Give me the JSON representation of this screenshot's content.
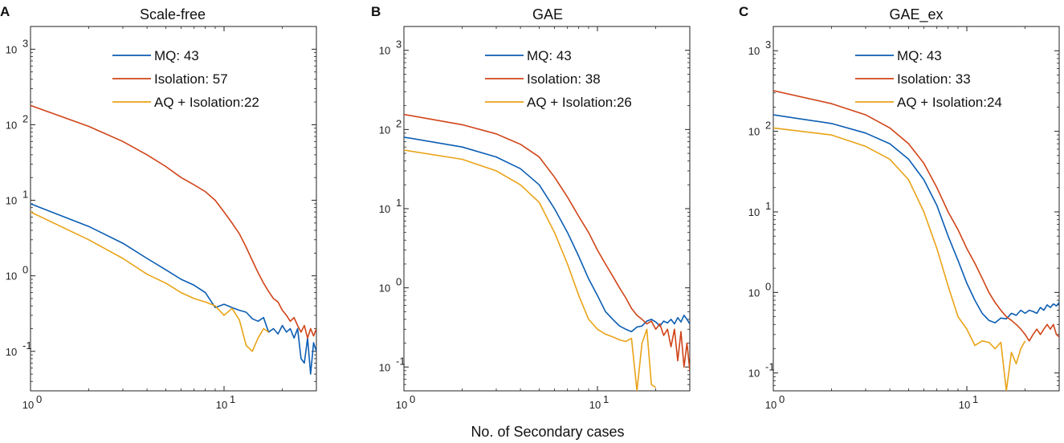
{
  "figure": {
    "xlabel": "No. of Secondary cases"
  },
  "colors": {
    "mq": "#0b5db3",
    "isolation": "#d04418",
    "aq_isolation": "#e9a317",
    "axis": "#222222"
  },
  "chart_data": [
    {
      "panel_label": "A",
      "type": "line",
      "title": "Scale-free",
      "xscale": "log",
      "yscale": "log",
      "xlim": [
        1,
        30
      ],
      "ylim": [
        0.03,
        2000
      ],
      "x_ticks": [
        {
          "label": "10",
          "exp": "0",
          "value": 1
        },
        {
          "label": "10",
          "exp": "1",
          "value": 10
        }
      ],
      "y_ticks": [
        {
          "label": "10",
          "exp": "-1",
          "value": 0.1
        },
        {
          "label": "10",
          "exp": "0",
          "value": 1
        },
        {
          "label": "10",
          "exp": "1",
          "value": 10
        },
        {
          "label": "10",
          "exp": "2",
          "value": 100
        },
        {
          "label": "10",
          "exp": "3",
          "value": 1000
        }
      ],
      "legend_position": "top-right",
      "series": [
        {
          "name": "MQ: 43",
          "color_key": "mq",
          "x": [
            1,
            2,
            3,
            4,
            5,
            6,
            7,
            8,
            9,
            10,
            11,
            12,
            13,
            14,
            15,
            16,
            17,
            18,
            19,
            20,
            21,
            22,
            23,
            24,
            25,
            26,
            27,
            28,
            29,
            30
          ],
          "y": [
            9,
            4.5,
            2.7,
            1.7,
            1.2,
            0.9,
            0.75,
            0.6,
            0.38,
            0.42,
            0.38,
            0.35,
            0.33,
            0.27,
            0.25,
            0.28,
            0.18,
            0.2,
            0.17,
            0.22,
            0.18,
            0.2,
            0.15,
            0.2,
            0.08,
            0.07,
            0.15,
            0.05,
            0.13,
            0.1
          ]
        },
        {
          "name": "Isolation: 57",
          "color_key": "isolation",
          "x": [
            1,
            2,
            3,
            4,
            5,
            6,
            7,
            8,
            9,
            10,
            11,
            12,
            13,
            14,
            15,
            16,
            17,
            18,
            19,
            20,
            21,
            22,
            23,
            24,
            25,
            26,
            27,
            28,
            29,
            30
          ],
          "y": [
            180,
            95,
            60,
            40,
            28,
            20,
            16,
            13,
            10,
            7,
            5,
            3.6,
            2.4,
            1.6,
            1.1,
            0.8,
            0.62,
            0.5,
            0.45,
            0.35,
            0.3,
            0.25,
            0.28,
            0.22,
            0.18,
            0.22,
            0.15,
            0.2,
            0.16,
            0.2
          ]
        },
        {
          "name": "AQ + Isolation:22",
          "color_key": "aq_isolation",
          "x": [
            1,
            2,
            3,
            4,
            5,
            6,
            7,
            8,
            9,
            10,
            11,
            12,
            13,
            14,
            15,
            16,
            17
          ],
          "y": [
            7,
            3,
            1.7,
            1.05,
            0.8,
            0.6,
            0.5,
            0.45,
            0.4,
            0.3,
            0.37,
            0.26,
            0.12,
            0.1,
            0.15,
            0.2,
            0.18
          ]
        }
      ]
    },
    {
      "panel_label": "B",
      "type": "line",
      "title": "GAE",
      "xscale": "log",
      "yscale": "log",
      "xlim": [
        1,
        30
      ],
      "ylim": [
        0.05,
        2000
      ],
      "x_ticks": [
        {
          "label": "10",
          "exp": "0",
          "value": 1
        },
        {
          "label": "10",
          "exp": "1",
          "value": 10
        }
      ],
      "y_ticks": [
        {
          "label": "10",
          "exp": "-1",
          "value": 0.1
        },
        {
          "label": "10",
          "exp": "0",
          "value": 1
        },
        {
          "label": "10",
          "exp": "1",
          "value": 10
        },
        {
          "label": "10",
          "exp": "2",
          "value": 100
        },
        {
          "label": "10",
          "exp": "3",
          "value": 1000
        }
      ],
      "legend_position": "top-right",
      "series": [
        {
          "name": "MQ: 43",
          "color_key": "mq",
          "x": [
            1,
            2,
            3,
            4,
            5,
            6,
            7,
            8,
            9,
            10,
            11,
            12,
            13,
            14,
            15,
            16,
            17,
            18,
            19,
            20,
            21,
            22,
            23,
            24,
            25,
            26,
            27,
            28,
            29,
            30
          ],
          "y": [
            80,
            60,
            45,
            32,
            20,
            10,
            5,
            2.5,
            1.3,
            0.8,
            0.5,
            0.4,
            0.33,
            0.3,
            0.28,
            0.32,
            0.33,
            0.38,
            0.4,
            0.37,
            0.33,
            0.38,
            0.36,
            0.4,
            0.35,
            0.42,
            0.37,
            0.45,
            0.4,
            0.35
          ]
        },
        {
          "name": "Isolation: 38",
          "color_key": "isolation",
          "x": [
            1,
            2,
            3,
            4,
            5,
            6,
            7,
            8,
            9,
            10,
            11,
            12,
            13,
            14,
            15,
            16,
            17,
            18,
            19,
            20,
            21,
            22,
            23,
            24,
            25,
            26,
            27,
            28,
            29,
            30
          ],
          "y": [
            155,
            115,
            88,
            65,
            45,
            25,
            14,
            8,
            5,
            3,
            2,
            1.4,
            1,
            0.75,
            0.55,
            0.45,
            0.4,
            0.35,
            0.38,
            0.3,
            0.35,
            0.25,
            0.3,
            0.18,
            0.3,
            0.12,
            0.28,
            0.1,
            0.2,
            0.09
          ]
        },
        {
          "name": "AQ + Isolation:26",
          "color_key": "aq_isolation",
          "x": [
            1,
            2,
            3,
            4,
            5,
            6,
            7,
            8,
            9,
            10,
            11,
            12,
            13,
            14,
            15,
            16,
            17,
            18,
            19,
            20
          ],
          "y": [
            55,
            42,
            30,
            20,
            12,
            5,
            2,
            0.8,
            0.4,
            0.3,
            0.26,
            0.24,
            0.22,
            0.21,
            0.23,
            0.05,
            0.2,
            0.3,
            0.06,
            0.055
          ]
        }
      ]
    },
    {
      "panel_label": "C",
      "type": "line",
      "title": "GAE_ex",
      "xscale": "log",
      "yscale": "log",
      "xlim": [
        1,
        30
      ],
      "ylim": [
        0.06,
        2000
      ],
      "x_ticks": [
        {
          "label": "10",
          "exp": "0",
          "value": 1
        },
        {
          "label": "10",
          "exp": "1",
          "value": 10
        }
      ],
      "y_ticks": [
        {
          "label": "10",
          "exp": "-1",
          "value": 0.1
        },
        {
          "label": "10",
          "exp": "0",
          "value": 1
        },
        {
          "label": "10",
          "exp": "1",
          "value": 10
        },
        {
          "label": "10",
          "exp": "2",
          "value": 100
        },
        {
          "label": "10",
          "exp": "3",
          "value": 1000
        }
      ],
      "legend_position": "top-right",
      "series": [
        {
          "name": "MQ: 43",
          "color_key": "mq",
          "x": [
            1,
            2,
            3,
            4,
            5,
            6,
            7,
            8,
            9,
            10,
            11,
            12,
            13,
            14,
            15,
            16,
            17,
            18,
            19,
            20,
            21,
            22,
            23,
            24,
            25,
            26,
            27,
            28,
            29,
            30
          ],
          "y": [
            160,
            125,
            95,
            70,
            45,
            25,
            12,
            5,
            2.5,
            1.3,
            0.8,
            0.55,
            0.45,
            0.42,
            0.48,
            0.47,
            0.55,
            0.52,
            0.6,
            0.55,
            0.6,
            0.58,
            0.55,
            0.65,
            0.6,
            0.7,
            0.65,
            0.72,
            0.68,
            0.75
          ]
        },
        {
          "name": "Isolation: 33",
          "color_key": "isolation",
          "x": [
            1,
            2,
            3,
            4,
            5,
            6,
            7,
            8,
            9,
            10,
            11,
            12,
            13,
            14,
            15,
            16,
            17,
            18,
            19,
            20,
            21,
            22,
            23,
            24,
            25,
            26,
            27,
            28,
            29,
            30
          ],
          "y": [
            320,
            220,
            160,
            110,
            70,
            40,
            20,
            10,
            6,
            3.5,
            2.3,
            1.5,
            1,
            0.75,
            0.6,
            0.5,
            0.45,
            0.4,
            0.35,
            0.3,
            0.25,
            0.3,
            0.35,
            0.3,
            0.35,
            0.4,
            0.35,
            0.4,
            0.3,
            0.28
          ]
        },
        {
          "name": "AQ + Isolation:24",
          "color_key": "aq_isolation",
          "x": [
            1,
            2,
            3,
            4,
            5,
            6,
            7,
            8,
            9,
            10,
            11,
            12,
            13,
            14,
            15,
            16,
            17,
            18,
            19,
            20
          ],
          "y": [
            110,
            90,
            65,
            45,
            25,
            10,
            3.5,
            1.2,
            0.5,
            0.35,
            0.22,
            0.25,
            0.24,
            0.2,
            0.24,
            0.06,
            0.18,
            0.13,
            0.2,
            0.25
          ]
        }
      ]
    }
  ]
}
